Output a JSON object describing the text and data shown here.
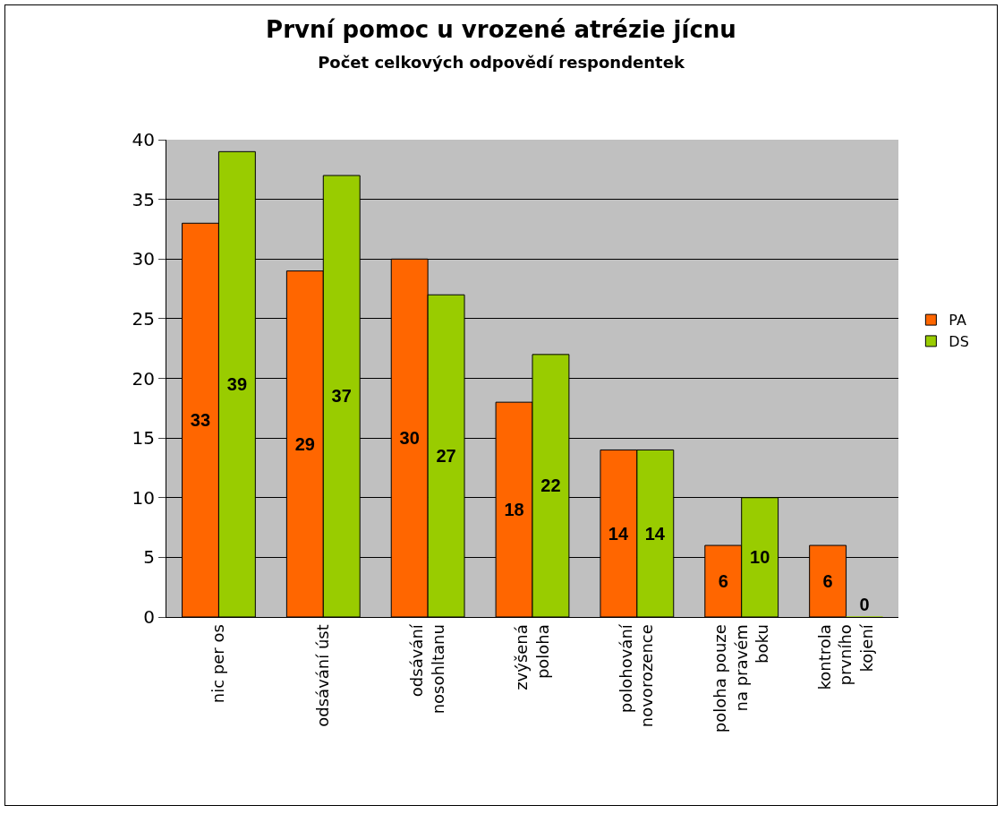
{
  "chart_data": {
    "type": "bar",
    "title": "První pomoc u vrozené atrézie jícnu",
    "subtitle": "Počet celkových odpovědí respondentek",
    "categories": [
      "nic per os",
      "odsávání úst",
      "odsávání nosohltanu",
      "zvýšená poloha",
      "polohování novorozence",
      "poloha pouze na pravém boku",
      "kontrola prvního kojení"
    ],
    "series": [
      {
        "name": "PA",
        "color": "#ff6600",
        "values": [
          33,
          29,
          30,
          18,
          14,
          6,
          6
        ]
      },
      {
        "name": "DS",
        "color": "#99cc00",
        "values": [
          39,
          37,
          27,
          22,
          14,
          10,
          0
        ]
      }
    ],
    "ylim": [
      0,
      40
    ],
    "yticks": [
      0,
      5,
      10,
      15,
      20,
      25,
      30,
      35,
      40
    ],
    "grid": "y",
    "legend": "right",
    "data_labels": true
  }
}
